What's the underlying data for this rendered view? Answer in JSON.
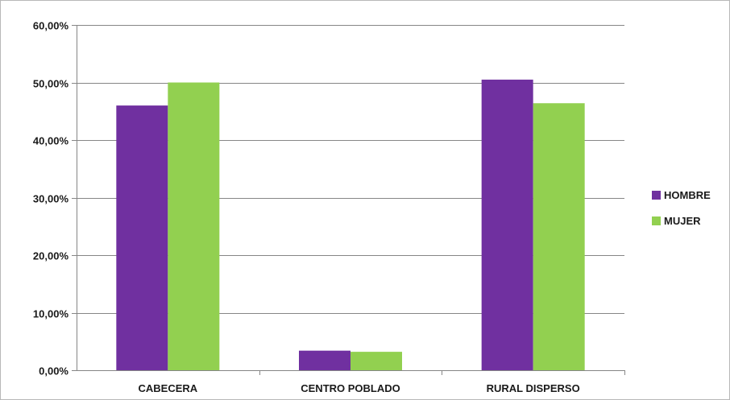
{
  "chart_data": {
    "type": "bar",
    "categories": [
      "CABECERA",
      "CENTRO POBLADO",
      "RURAL DISPERSO"
    ],
    "series": [
      {
        "name": "HOMBRE",
        "color": "#7030a0",
        "values": [
          0.46,
          0.034,
          0.505
        ]
      },
      {
        "name": "MUJER",
        "color": "#92d050",
        "values": [
          0.5,
          0.032,
          0.464
        ]
      }
    ],
    "y_ticks": [
      "0,00%",
      "10,00%",
      "20,00%",
      "30,00%",
      "40,00%",
      "50,00%",
      "60,00%"
    ],
    "ylim": [
      0,
      0.6
    ],
    "grid": true,
    "legend_position": "right",
    "title": "",
    "xlabel": "",
    "ylabel": ""
  }
}
